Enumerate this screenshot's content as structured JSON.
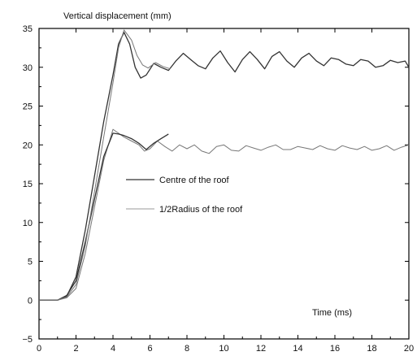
{
  "chart_data": {
    "type": "line",
    "ylabel": "Vertical displacement (mm)",
    "xlabel": "Time (ms)",
    "xlim": [
      0,
      20
    ],
    "ylim": [
      -5,
      35
    ],
    "xticks": [
      0,
      2,
      4,
      6,
      8,
      10,
      12,
      14,
      16,
      18,
      20
    ],
    "yticks": [
      -5,
      0,
      5,
      10,
      15,
      20,
      25,
      30,
      35
    ],
    "grid": false,
    "legend_position": "center-left",
    "series": [
      {
        "name": "Centre of the roof",
        "style": "solid",
        "color": "#333333",
        "x": [
          0,
          1,
          1.5,
          2,
          2.5,
          3,
          3.5,
          4,
          4.3,
          4.6,
          4.9,
          5.2,
          5.5,
          5.8,
          6.2,
          6.6,
          7.0,
          7.4,
          7.8,
          8.2,
          8.6,
          9.0,
          9.4,
          9.8,
          10.2,
          10.6,
          11.0,
          11.4,
          11.8,
          12.2,
          12.6,
          13.0,
          13.4,
          13.8,
          14.2,
          14.6,
          15.0,
          15.4,
          15.8,
          16.2,
          16.6,
          17.0,
          17.4,
          17.8,
          18.2,
          18.6,
          19.0,
          19.4,
          19.8,
          20.0
        ],
        "y": [
          0,
          0,
          0.5,
          3,
          9,
          16,
          23,
          29,
          33,
          34.5,
          33,
          30,
          28.6,
          29,
          30.5,
          30,
          29.6,
          30.8,
          31.8,
          31,
          30.2,
          29.8,
          31.2,
          32.1,
          30.6,
          29.4,
          31.0,
          32.0,
          31.0,
          29.8,
          31.4,
          32.0,
          30.8,
          30.0,
          31.2,
          31.8,
          30.8,
          30.2,
          31.2,
          31.0,
          30.4,
          30.2,
          31.0,
          30.8,
          30.0,
          30.2,
          30.9,
          30.6,
          30.8,
          30.0
        ]
      },
      {
        "name": "1/2Radius of the roof",
        "style": "solid",
        "color": "#777777",
        "x": [
          0,
          1,
          1.5,
          2,
          2.5,
          3,
          3.5,
          4,
          4.3,
          4.6,
          5.0,
          5.4,
          5.7,
          6.0,
          6.4,
          6.8,
          7.2,
          7.6,
          8.0,
          8.4,
          8.8,
          9.2,
          9.6,
          10.0,
          10.4,
          10.8,
          11.2,
          11.6,
          12.0,
          12.4,
          12.8,
          13.2,
          13.6,
          14.0,
          14.4,
          14.8,
          15.2,
          15.6,
          16.0,
          16.4,
          16.8,
          17.2,
          17.6,
          18.0,
          18.4,
          18.8,
          19.2,
          19.6,
          20.0
        ],
        "y": [
          0,
          0,
          0.3,
          1.5,
          6,
          12,
          18,
          22,
          21.5,
          21,
          20.5,
          20,
          19.2,
          19.5,
          20.5,
          19.8,
          19.2,
          20.0,
          19.5,
          20.0,
          19.2,
          18.9,
          19.8,
          20.0,
          19.3,
          19.2,
          19.9,
          19.6,
          19.3,
          19.7,
          20.0,
          19.4,
          19.4,
          19.8,
          19.6,
          19.4,
          19.9,
          19.5,
          19.3,
          19.9,
          19.6,
          19.4,
          19.8,
          19.3,
          19.5,
          19.9,
          19.3,
          19.7,
          20.0
        ]
      },
      {
        "name": "",
        "style": "solid",
        "color": "#333333",
        "x": [
          0,
          1,
          1.5,
          2,
          2.5,
          3,
          3.5,
          4,
          4.3,
          4.6,
          5.0,
          5.4,
          5.8,
          6.2,
          6.6,
          7.0
        ],
        "y": [
          0,
          0,
          0.6,
          2.5,
          7.5,
          13,
          18.5,
          21.5,
          21.4,
          21.2,
          20.8,
          20.2,
          19.4,
          20.2,
          20.8,
          21.4
        ]
      },
      {
        "name": "",
        "style": "solid",
        "color": "#777777",
        "x": [
          0,
          1,
          1.5,
          2,
          2.5,
          3,
          3.5,
          4,
          4.3,
          4.6,
          5.0,
          5.3,
          5.6,
          5.9,
          6.3,
          6.7,
          7.1
        ],
        "y": [
          0,
          0,
          0.4,
          2,
          7,
          14,
          21,
          28,
          32.5,
          34.8,
          33.5,
          31.5,
          30.3,
          29.9,
          30.6,
          30.1,
          29.8
        ]
      }
    ]
  },
  "legend": {
    "items": [
      {
        "label": "Centre of the roof",
        "color": "#333333"
      },
      {
        "label": "1/2Radius of the roof",
        "color": "#999999"
      }
    ]
  }
}
